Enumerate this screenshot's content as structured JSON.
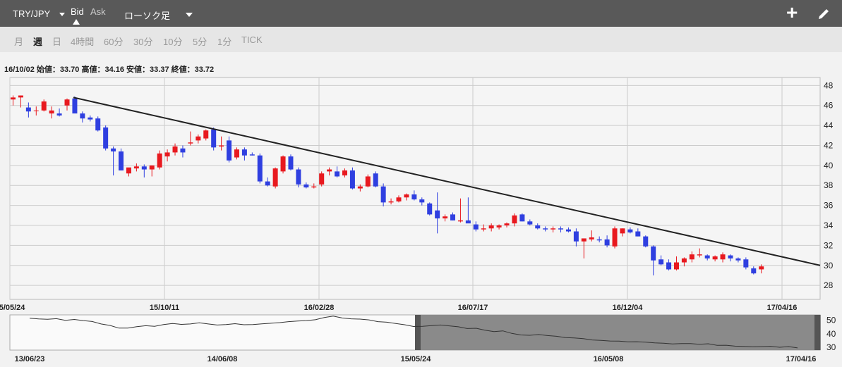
{
  "toolbar": {
    "pair": "TRY/JPY",
    "bid_label": "Bid",
    "ask_label": "Ask",
    "chart_type": "ローソク足",
    "add_icon": "plus-icon",
    "edit_icon": "pencil-icon"
  },
  "periods": [
    {
      "label": "月",
      "active": false
    },
    {
      "label": "週",
      "active": true
    },
    {
      "label": "日",
      "active": false
    },
    {
      "label": "4時間",
      "active": false
    },
    {
      "label": "60分",
      "active": false
    },
    {
      "label": "30分",
      "active": false
    },
    {
      "label": "10分",
      "active": false
    },
    {
      "label": "5分",
      "active": false
    },
    {
      "label": "1分",
      "active": false
    },
    {
      "label": "TICK",
      "active": false
    }
  ],
  "ohlc_text": "16/10/02 始値：33.70 高値：34.16 安値：33.37 終値：33.72",
  "colors": {
    "up": "#e8191f",
    "down": "#2f3fe0",
    "trend": "#222222",
    "grid": "#cccccc"
  },
  "chart_data": [
    {
      "type": "candlestick",
      "y_ticks": [
        28,
        30,
        32,
        34,
        36,
        38,
        40,
        42,
        44,
        46,
        48
      ],
      "ylim": [
        26.6,
        48.8
      ],
      "x_ticks": [
        "15/05/24",
        "15/10/11",
        "16/02/28",
        "16/07/17",
        "16/12/04",
        "17/04/16"
      ],
      "candles": [
        [
          46.6,
          47.0,
          46.0,
          46.8
        ],
        [
          46.8,
          47.0,
          45.8,
          47.0
        ],
        [
          45.8,
          46.3,
          44.8,
          45.4
        ],
        [
          45.5,
          45.9,
          45.0,
          45.5
        ],
        [
          45.5,
          46.6,
          45.4,
          46.4
        ],
        [
          45.2,
          45.9,
          44.7,
          45.5
        ],
        [
          45.2,
          45.7,
          44.9,
          45.0
        ],
        [
          46.0,
          46.7,
          45.5,
          46.6
        ],
        [
          46.7,
          46.9,
          45.4,
          45.2
        ],
        [
          45.2,
          45.4,
          44.3,
          44.7
        ],
        [
          44.8,
          45.0,
          44.4,
          44.6
        ],
        [
          44.7,
          44.9,
          43.4,
          43.5
        ],
        [
          43.8,
          44.0,
          41.5,
          41.7
        ],
        [
          41.7,
          41.9,
          39.0,
          41.4
        ],
        [
          41.4,
          41.7,
          39.5,
          39.5
        ],
        [
          39.2,
          39.7,
          38.9,
          39.8
        ],
        [
          39.7,
          40.2,
          39.4,
          39.9
        ],
        [
          39.9,
          40.1,
          38.8,
          39.6
        ],
        [
          39.6,
          40.0,
          38.9,
          40.0
        ],
        [
          39.8,
          41.5,
          39.6,
          41.2
        ],
        [
          40.9,
          41.6,
          40.4,
          41.3
        ],
        [
          41.3,
          42.2,
          41.0,
          41.9
        ],
        [
          41.7,
          42.0,
          40.8,
          41.3
        ],
        [
          42.2,
          43.4,
          42.0,
          42.3
        ],
        [
          42.5,
          43.1,
          42.2,
          42.9
        ],
        [
          42.7,
          43.6,
          42.5,
          43.5
        ],
        [
          43.6,
          43.8,
          41.5,
          41.8
        ],
        [
          41.9,
          42.9,
          41.5,
          42.0
        ],
        [
          42.5,
          42.9,
          40.3,
          40.5
        ],
        [
          40.8,
          41.8,
          40.6,
          41.6
        ],
        [
          41.6,
          41.8,
          40.5,
          41.0
        ],
        [
          41.1,
          41.3,
          41.0,
          41.0
        ],
        [
          41.0,
          41.2,
          38.2,
          38.4
        ],
        [
          38.4,
          38.8,
          37.9,
          38.0
        ],
        [
          37.9,
          39.8,
          37.7,
          39.7
        ],
        [
          39.4,
          41.0,
          39.2,
          40.9
        ],
        [
          40.9,
          41.1,
          39.5,
          39.6
        ],
        [
          39.6,
          39.8,
          37.8,
          38.1
        ],
        [
          38.1,
          38.3,
          37.7,
          37.8
        ],
        [
          37.8,
          38.2,
          37.7,
          37.9
        ],
        [
          38.1,
          39.4,
          37.9,
          39.2
        ],
        [
          39.4,
          39.8,
          39.0,
          39.6
        ],
        [
          39.4,
          39.9,
          38.8,
          38.9
        ],
        [
          39.0,
          39.7,
          38.8,
          39.5
        ],
        [
          39.5,
          39.8,
          37.6,
          37.7
        ],
        [
          37.7,
          38.1,
          37.4,
          37.9
        ],
        [
          37.9,
          39.1,
          37.8,
          38.9
        ],
        [
          39.2,
          39.4,
          37.8,
          37.9
        ],
        [
          37.9,
          38.2,
          35.9,
          36.3
        ],
        [
          36.3,
          36.7,
          36.1,
          36.4
        ],
        [
          36.4,
          37.0,
          36.3,
          36.8
        ],
        [
          36.8,
          37.2,
          36.5,
          37.1
        ],
        [
          37.1,
          37.5,
          36.5,
          36.6
        ],
        [
          36.6,
          36.8,
          36.0,
          36.3
        ],
        [
          36.2,
          36.3,
          35.0,
          35.1
        ],
        [
          35.5,
          37.3,
          33.2,
          34.7
        ],
        [
          34.7,
          35.1,
          34.4,
          34.9
        ],
        [
          35.1,
          35.3,
          34.5,
          34.5
        ],
        [
          34.4,
          36.7,
          34.3,
          34.5
        ],
        [
          34.5,
          36.8,
          34.3,
          34.2
        ],
        [
          34.1,
          34.4,
          33.4,
          33.6
        ],
        [
          33.6,
          34.1,
          33.4,
          33.7
        ],
        [
          33.7,
          34.2,
          33.4,
          34.0
        ],
        [
          33.8,
          34.1,
          33.6,
          34.0
        ],
        [
          34.0,
          34.3,
          33.8,
          34.2
        ],
        [
          34.2,
          35.2,
          33.9,
          35.0
        ],
        [
          35.1,
          35.2,
          34.4,
          34.4
        ],
        [
          34.4,
          34.6,
          34.0,
          34.1
        ],
        [
          34.0,
          34.2,
          33.6,
          33.7
        ],
        [
          33.7,
          33.9,
          33.4,
          33.6
        ],
        [
          33.6,
          33.9,
          33.3,
          33.7
        ],
        [
          33.7,
          33.9,
          33.3,
          33.6
        ],
        [
          33.6,
          33.8,
          33.3,
          33.4
        ],
        [
          33.4,
          33.7,
          31.9,
          32.4
        ],
        [
          32.4,
          32.6,
          30.7,
          32.7
        ],
        [
          32.6,
          33.5,
          32.4,
          32.8
        ],
        [
          32.6,
          32.9,
          32.3,
          32.5
        ],
        [
          32.6,
          33.0,
          31.8,
          32.0
        ],
        [
          31.9,
          33.9,
          31.7,
          33.7
        ],
        [
          33.2,
          33.7,
          32.9,
          33.7
        ],
        [
          33.6,
          33.8,
          33.2,
          33.3
        ],
        [
          33.4,
          33.7,
          32.9,
          32.9
        ],
        [
          32.9,
          33.0,
          31.8,
          31.9
        ],
        [
          31.9,
          32.0,
          29.0,
          30.5
        ],
        [
          30.6,
          31.0,
          30.0,
          30.1
        ],
        [
          30.3,
          30.6,
          29.5,
          29.6
        ],
        [
          29.6,
          30.9,
          29.5,
          30.3
        ],
        [
          30.3,
          30.8,
          29.9,
          30.7
        ],
        [
          30.6,
          31.4,
          30.3,
          31.1
        ],
        [
          31.0,
          31.7,
          30.8,
          31.1
        ],
        [
          31.0,
          31.1,
          30.5,
          30.7
        ],
        [
          30.6,
          31.0,
          30.4,
          30.9
        ],
        [
          30.6,
          31.3,
          30.3,
          31.1
        ],
        [
          31.0,
          31.1,
          30.4,
          30.7
        ],
        [
          30.7,
          30.8,
          30.3,
          30.5
        ],
        [
          30.6,
          30.8,
          29.6,
          29.8
        ],
        [
          29.7,
          29.9,
          29.1,
          29.2
        ],
        [
          29.6,
          30.1,
          29.2,
          29.9
        ]
      ],
      "trendline": [
        [
          7,
          46.8
        ],
        [
          111,
          30.0
        ]
      ]
    },
    {
      "type": "line",
      "y_ticks": [
        30,
        40,
        50
      ],
      "ylim": [
        28,
        54
      ],
      "x_ticks": [
        "13/06/23",
        "14/06/08",
        "15/05/24",
        "16/05/08",
        "17/04/16"
      ],
      "values": [
        51.5,
        51.0,
        50.7,
        51.2,
        50.0,
        50.6,
        49.8,
        49.1,
        47.3,
        46.2,
        44.2,
        44.2,
        45.3,
        46.0,
        45.6,
        46.8,
        47.6,
        47.0,
        47.3,
        48.1,
        47.3,
        46.5,
        46.8,
        47.5,
        46.7,
        46.9,
        47.4,
        47.8,
        48.3,
        49.0,
        49.5,
        49.8,
        50.4,
        52.0,
        53.1,
        51.7,
        51.1,
        50.9,
        50.3,
        49.0,
        48.6,
        47.6,
        46.7,
        45.4,
        45.6,
        46.1,
        46.5,
        45.9,
        45.2,
        43.9,
        44.1,
        42.7,
        41.6,
        42.2,
        40.3,
        39.2,
        38.9,
        39.5,
        38.7,
        38.2,
        37.2,
        37.0,
        36.4,
        35.5,
        35.1,
        34.7,
        34.6,
        34.1,
        34.2,
        33.9,
        33.3,
        33.1,
        32.5,
        32.8,
        32.8,
        32.3,
        32.7,
        31.5,
        31.6,
        30.9,
        30.7,
        30.5,
        30.6,
        30.8,
        30.1,
        30.6,
        29.6
      ],
      "window": [
        0.72,
        0.98
      ]
    }
  ]
}
